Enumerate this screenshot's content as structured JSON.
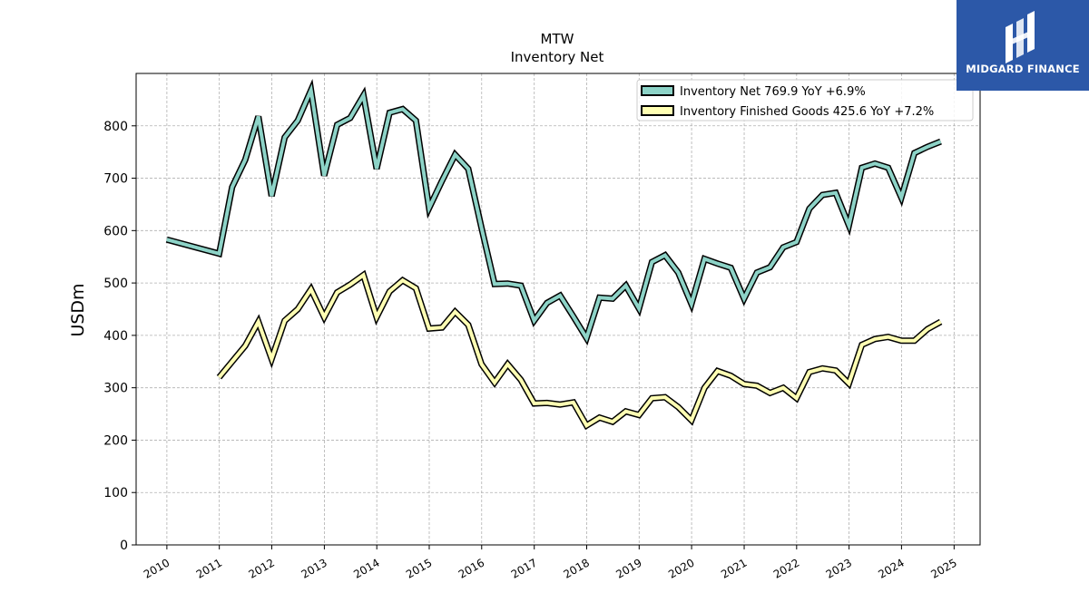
{
  "brand": {
    "name": "MIDGARD FINANCE",
    "bg_color": "#2c58a8"
  },
  "chart_data": {
    "type": "line",
    "title": "MTW",
    "subtitle": "Inventory Net",
    "ylabel": "USDm",
    "xlabel": "",
    "ylim": [
      0,
      900
    ],
    "yticks": [
      0,
      100,
      200,
      300,
      400,
      500,
      600,
      700,
      800
    ],
    "xticks": [
      "2010",
      "2011",
      "2012",
      "2013",
      "2014",
      "2015",
      "2016",
      "2017",
      "2018",
      "2019",
      "2020",
      "2021",
      "2022",
      "2023",
      "2024",
      "2025"
    ],
    "grid": true,
    "legend_position": "top-right",
    "series": [
      {
        "name": "Inventory Net",
        "legend_label": "Inventory Net  769.9 YoY +6.9%",
        "color": "#8dd3c7",
        "points": [
          [
            "2009-12-31",
            583
          ],
          [
            "2010-12-31",
            556
          ],
          [
            "2011-03-31",
            683
          ],
          [
            "2011-06-30",
            735
          ],
          [
            "2011-09-30",
            818
          ],
          [
            "2011-12-31",
            666
          ],
          [
            "2012-03-31",
            778
          ],
          [
            "2012-06-30",
            810
          ],
          [
            "2012-09-30",
            868
          ],
          [
            "2012-12-31",
            705
          ],
          [
            "2013-03-31",
            802
          ],
          [
            "2013-06-30",
            815
          ],
          [
            "2013-09-30",
            858
          ],
          [
            "2013-12-31",
            718
          ],
          [
            "2014-03-31",
            825
          ],
          [
            "2014-06-30",
            832
          ],
          [
            "2014-09-30",
            810
          ],
          [
            "2014-12-31",
            643
          ],
          [
            "2015-03-31",
            695
          ],
          [
            "2015-06-30",
            745
          ],
          [
            "2015-09-30",
            718
          ],
          [
            "2015-12-31",
            605
          ],
          [
            "2016-03-31",
            498
          ],
          [
            "2016-06-30",
            499
          ],
          [
            "2016-09-30",
            495
          ],
          [
            "2016-12-31",
            428
          ],
          [
            "2017-03-31",
            462
          ],
          [
            "2017-06-30",
            476
          ],
          [
            "2017-09-30",
            436
          ],
          [
            "2017-12-31",
            395
          ],
          [
            "2018-03-31",
            472
          ],
          [
            "2018-06-30",
            470
          ],
          [
            "2018-09-30",
            495
          ],
          [
            "2018-12-31",
            451
          ],
          [
            "2019-03-31",
            540
          ],
          [
            "2019-06-30",
            553
          ],
          [
            "2019-09-30",
            520
          ],
          [
            "2019-12-31",
            460
          ],
          [
            "2020-03-31",
            546
          ],
          [
            "2020-06-30",
            537
          ],
          [
            "2020-09-30",
            529
          ],
          [
            "2020-12-31",
            470
          ],
          [
            "2021-03-31",
            520
          ],
          [
            "2021-06-30",
            530
          ],
          [
            "2021-09-30",
            568
          ],
          [
            "2021-12-31",
            578
          ],
          [
            "2022-03-31",
            642
          ],
          [
            "2022-06-30",
            668
          ],
          [
            "2022-09-30",
            672
          ],
          [
            "2022-12-31",
            610
          ],
          [
            "2023-03-31",
            720
          ],
          [
            "2023-06-30",
            728
          ],
          [
            "2023-09-30",
            720
          ],
          [
            "2023-12-31",
            663
          ],
          [
            "2024-03-31",
            748
          ],
          [
            "2024-06-30",
            760
          ],
          [
            "2024-09-30",
            770
          ]
        ]
      },
      {
        "name": "Inventory Finished Goods",
        "legend_label": "Inventory Finished Goods  425.6 YoY +7.2%",
        "color": "#ffffb3",
        "points": [
          [
            "2010-12-31",
            320
          ],
          [
            "2011-03-31",
            350
          ],
          [
            "2011-06-30",
            380
          ],
          [
            "2011-09-30",
            426
          ],
          [
            "2011-12-31",
            355
          ],
          [
            "2012-03-31",
            428
          ],
          [
            "2012-06-30",
            450
          ],
          [
            "2012-09-30",
            488
          ],
          [
            "2012-12-31",
            435
          ],
          [
            "2013-03-31",
            482
          ],
          [
            "2013-06-30",
            497
          ],
          [
            "2013-09-30",
            515
          ],
          [
            "2013-12-31",
            435
          ],
          [
            "2014-03-31",
            484
          ],
          [
            "2014-06-30",
            505
          ],
          [
            "2014-09-30",
            490
          ],
          [
            "2014-12-31",
            413
          ],
          [
            "2015-03-31",
            415
          ],
          [
            "2015-06-30",
            445
          ],
          [
            "2015-09-30",
            420
          ],
          [
            "2015-12-31",
            345
          ],
          [
            "2016-03-31",
            310
          ],
          [
            "2016-06-30",
            345
          ],
          [
            "2016-09-30",
            315
          ],
          [
            "2016-12-31",
            270
          ],
          [
            "2017-03-31",
            271
          ],
          [
            "2017-06-30",
            268
          ],
          [
            "2017-09-30",
            272
          ],
          [
            "2017-12-31",
            228
          ],
          [
            "2018-03-31",
            243
          ],
          [
            "2018-06-30",
            235
          ],
          [
            "2018-09-30",
            255
          ],
          [
            "2018-12-31",
            248
          ],
          [
            "2019-03-31",
            280
          ],
          [
            "2019-06-30",
            282
          ],
          [
            "2019-09-30",
            263
          ],
          [
            "2019-12-31",
            238
          ],
          [
            "2020-03-31",
            300
          ],
          [
            "2020-06-30",
            332
          ],
          [
            "2020-09-30",
            323
          ],
          [
            "2020-12-31",
            307
          ],
          [
            "2021-03-31",
            304
          ],
          [
            "2021-06-30",
            290
          ],
          [
            "2021-09-30",
            300
          ],
          [
            "2021-12-31",
            280
          ],
          [
            "2022-03-31",
            330
          ],
          [
            "2022-06-30",
            337
          ],
          [
            "2022-09-30",
            333
          ],
          [
            "2022-12-31",
            308
          ],
          [
            "2023-03-31",
            382
          ],
          [
            "2023-06-30",
            393
          ],
          [
            "2023-09-30",
            397
          ],
          [
            "2023-12-31",
            390
          ],
          [
            "2024-03-31",
            390
          ],
          [
            "2024-06-30",
            412
          ],
          [
            "2024-09-30",
            426
          ]
        ]
      }
    ]
  }
}
